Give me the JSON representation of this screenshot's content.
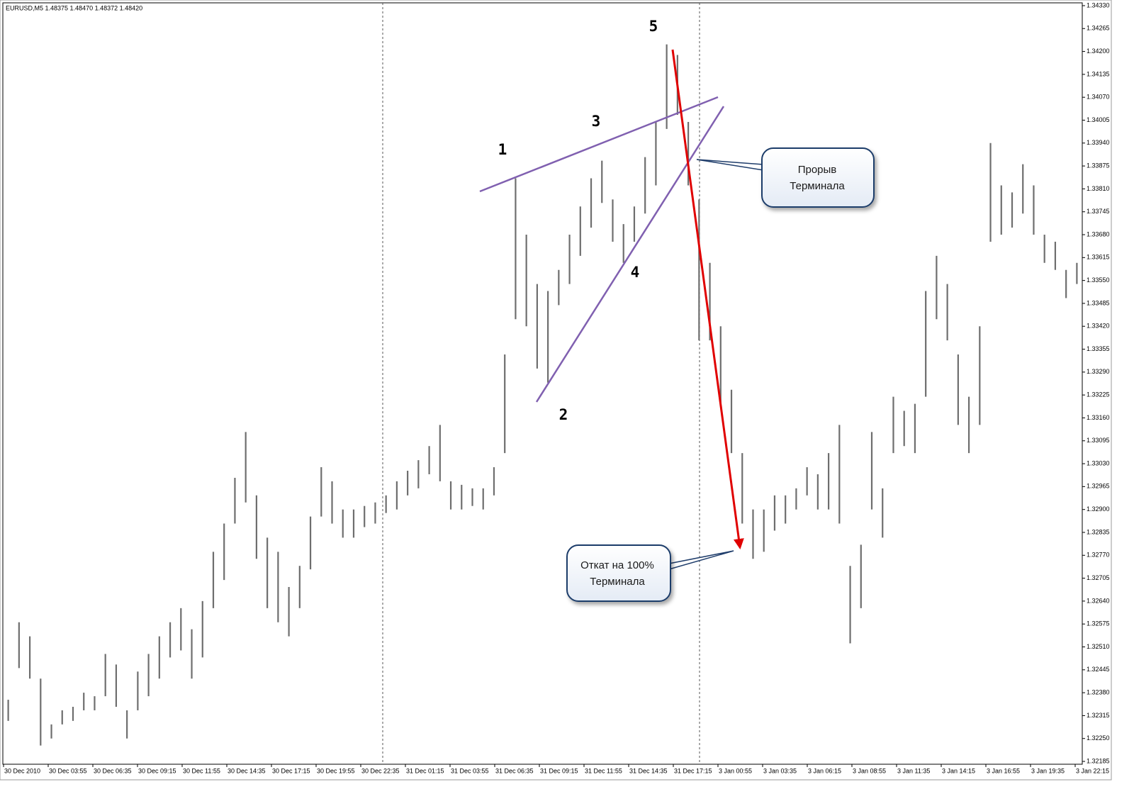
{
  "chart_data": {
    "type": "hilo",
    "title": "EURUSD,M5  1.48375 1.48470 1.48372 1.48420",
    "color": "#6e6e6e",
    "low": [
      1.323,
      1.3245,
      1.3242,
      1.3223,
      1.3225,
      1.3229,
      1.323,
      1.3233,
      1.3233,
      1.3237,
      1.3234,
      1.3225,
      1.3233,
      1.3237,
      1.3242,
      1.3248,
      1.325,
      1.3242,
      1.3248,
      1.3262,
      1.327,
      1.3286,
      1.3292,
      1.3276,
      1.3262,
      1.3258,
      1.3254,
      1.3262,
      1.3273,
      1.3288,
      1.3286,
      1.3282,
      1.3282,
      1.3285,
      1.3286,
      1.3289,
      1.329,
      1.3294,
      1.3296,
      1.33,
      1.3298,
      1.329,
      1.329,
      1.3291,
      1.329,
      1.3294,
      1.3306,
      1.3344,
      1.3342,
      1.333,
      1.3326,
      1.3348,
      1.3354,
      1.3362,
      1.337,
      1.3377,
      1.3366,
      1.336,
      1.3366,
      1.3374,
      1.3382,
      1.3398,
      1.3402,
      1.3382,
      1.3338,
      1.3338,
      1.332,
      1.3306,
      1.3286,
      1.3276,
      1.3278,
      1.3284,
      1.3286,
      1.329,
      1.3294,
      1.329,
      1.329,
      1.3286,
      1.3252,
      1.3262,
      1.329,
      1.3282,
      1.3306,
      1.3308,
      1.3306,
      1.3322,
      1.3344,
      1.3338,
      1.3314,
      1.3306,
      1.3314,
      1.3366,
      1.3368,
      1.337,
      1.3374,
      1.3368,
      1.336,
      1.3358,
      1.335,
      1.3354
    ],
    "high": [
      1.3236,
      1.3258,
      1.3254,
      1.3242,
      1.3229,
      1.3233,
      1.3234,
      1.3238,
      1.3237,
      1.3249,
      1.3246,
      1.3233,
      1.3244,
      1.3249,
      1.3254,
      1.3258,
      1.3262,
      1.3256,
      1.3264,
      1.3278,
      1.3286,
      1.3299,
      1.3312,
      1.3294,
      1.3282,
      1.3278,
      1.3268,
      1.3274,
      1.3288,
      1.3302,
      1.3298,
      1.329,
      1.329,
      1.3291,
      1.3292,
      1.3294,
      1.3298,
      1.3301,
      1.3304,
      1.3308,
      1.3314,
      1.3298,
      1.3297,
      1.3296,
      1.3296,
      1.3302,
      1.3334,
      1.3384,
      1.3368,
      1.3354,
      1.3352,
      1.3358,
      1.3368,
      1.3376,
      1.3384,
      1.3389,
      1.3378,
      1.3371,
      1.3376,
      1.339,
      1.34,
      1.3422,
      1.3419,
      1.34,
      1.3378,
      1.336,
      1.3342,
      1.3324,
      1.3306,
      1.329,
      1.329,
      1.3294,
      1.3294,
      1.3296,
      1.3302,
      1.33,
      1.3306,
      1.3314,
      1.3274,
      1.328,
      1.3312,
      1.3296,
      1.3322,
      1.3318,
      1.332,
      1.3352,
      1.3362,
      1.3354,
      1.3334,
      1.3322,
      1.3342,
      1.3394,
      1.3382,
      1.338,
      1.3388,
      1.3382,
      1.3368,
      1.3366,
      1.3358,
      1.336
    ],
    "ylim": [
      1.32177,
      1.34338
    ],
    "yticks": [
      {
        "value": 1.3433,
        "label": "1.34330"
      },
      1.34265,
      {
        "value": 1.342,
        "label": "1.34200"
      },
      1.34135,
      {
        "value": 1.3407,
        "label": "1.34070"
      },
      1.34005,
      {
        "value": 1.3394,
        "label": "1.33940"
      },
      1.33875,
      {
        "value": 1.3381,
        "label": "1.33810"
      },
      1.33745,
      {
        "value": 1.3368,
        "label": "1.33680"
      },
      1.33615,
      {
        "value": 1.3355,
        "label": "1.33550"
      },
      1.33485,
      {
        "value": 1.3342,
        "label": "1.33420"
      },
      1.33355,
      {
        "value": 1.3329,
        "label": "1.33290"
      },
      1.33225,
      {
        "value": 1.3316,
        "label": "1.33160"
      },
      1.33095,
      {
        "value": 1.3303,
        "label": "1.33030"
      },
      1.32965,
      {
        "value": 1.329,
        "label": "1.32900"
      },
      1.32835,
      {
        "value": 1.3277,
        "label": "1.32770"
      },
      1.32705,
      {
        "value": 1.3264,
        "label": "1.32640"
      },
      1.32575,
      {
        "value": 1.3251,
        "label": "1.32510"
      },
      1.32445,
      {
        "value": 1.3238,
        "label": "1.32380"
      },
      1.32315,
      {
        "value": 1.3225,
        "label": "1.32250"
      },
      1.32185
    ],
    "x_labels": [
      "30 Dec 2010",
      "30 Dec 03:55",
      "30 Dec 06:35",
      "30 Dec 09:15",
      "30 Dec 11:55",
      "30 Dec 14:35",
      "30 Dec 17:15",
      "30 Dec 19:55",
      "30 Dec 22:35",
      "31 Dec 01:15",
      "31 Dec 03:55",
      "31 Dec 06:35",
      "31 Dec 09:15",
      "31 Dec 11:55",
      "31 Dec 14:35",
      "31 Dec 17:15",
      "3 Jan 00:55",
      "3 Jan 03:35",
      "3 Jan 06:15",
      "3 Jan 08:55",
      "3 Jan 11:35",
      "3 Jan 14:15",
      "3 Jan 16:55",
      "3 Jan 19:35",
      "3 Jan 22:15"
    ],
    "wave_labels": [
      "1",
      "2",
      "3",
      "4",
      "5"
    ],
    "callouts": [
      [
        "Прорыв",
        "Терминала"
      ],
      [
        "Откат на 100%",
        "Терминала"
      ]
    ]
  }
}
